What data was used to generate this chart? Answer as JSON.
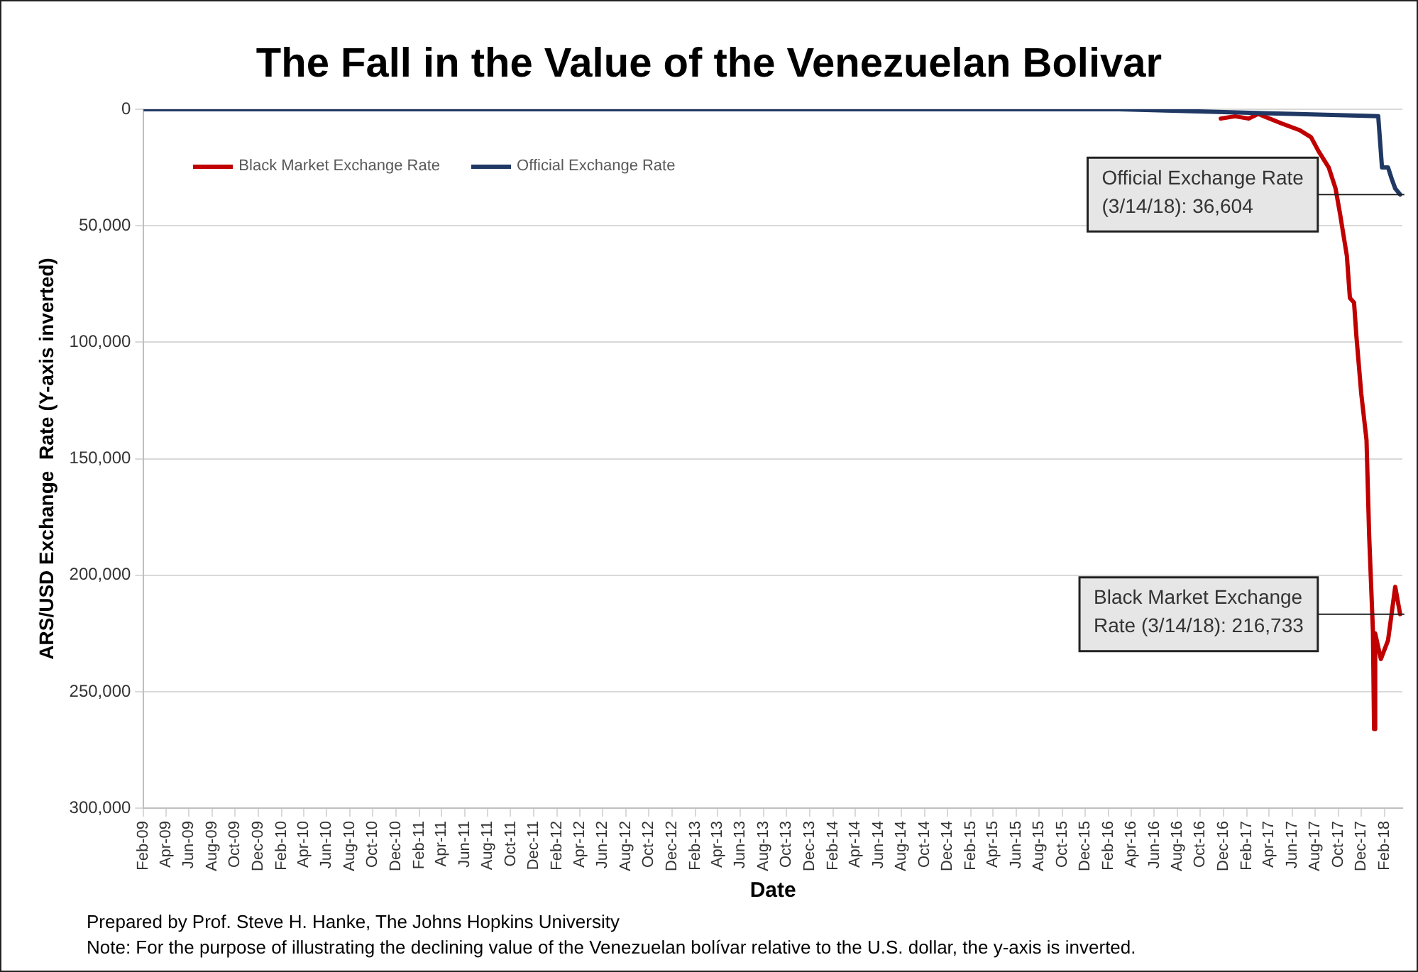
{
  "chart_data": {
    "type": "line",
    "title": "The Fall in the Value of the Venezuelan Bolivar",
    "xlabel": "Date",
    "ylabel": "ARS/USD Exchange  Rate (Y-axis inverted)",
    "series": [
      {
        "name": "Black Market Exchange Rate",
        "color": "#c00000",
        "x": [
          "2016-11-24",
          "2017-01-01",
          "2017-02-06",
          "2017-03-03",
          "2017-05-03",
          "2017-06-21",
          "2017-07-21",
          "2017-08-10",
          "2017-09-06",
          "2017-09-24",
          "2017-10-06",
          "2017-10-24",
          "2017-11-01",
          "2017-11-12",
          "2017-11-18",
          "2017-12-01",
          "2017-12-15",
          "2017-12-22",
          "2018-01-01",
          "2018-01-04",
          "2018-01-07",
          "2018-01-22",
          "2018-02-10",
          "2018-03-01",
          "2018-03-14"
        ],
        "values": [
          4000,
          3000,
          4000,
          2000,
          6000,
          9000,
          12000,
          18000,
          25000,
          34000,
          45000,
          63000,
          81000,
          83000,
          97000,
          122000,
          142000,
          183000,
          224000,
          266000,
          225000,
          236000,
          228000,
          205000,
          216733
        ]
      },
      {
        "name": "Official Exchange Rate",
        "color": "#1f3864",
        "x": [
          "2009-02-01",
          "2016-03-01",
          "2017-06-01",
          "2018-01-15",
          "2018-01-25",
          "2018-02-10",
          "2018-02-20",
          "2018-03-01",
          "2018-03-14"
        ],
        "values": [
          0,
          0,
          2000,
          3000,
          25000,
          25000,
          30000,
          34000,
          36604
        ]
      }
    ],
    "xlim": [
      "2009-02-01",
      "2018-03-20"
    ],
    "xticks": [
      {
        "value": "2009-02",
        "label": "Feb-09"
      },
      {
        "value": "2009-04",
        "label": "Apr-09"
      },
      {
        "value": "2009-06",
        "label": "Jun-09"
      },
      {
        "value": "2009-08",
        "label": "Aug-09"
      },
      {
        "value": "2009-10",
        "label": "Oct-09"
      },
      {
        "value": "2009-12",
        "label": "Dec-09"
      },
      {
        "value": "2010-02",
        "label": "Feb-10"
      },
      {
        "value": "2010-04",
        "label": "Apr-10"
      },
      {
        "value": "2010-06",
        "label": "Jun-10"
      },
      {
        "value": "2010-08",
        "label": "Aug-10"
      },
      {
        "value": "2010-10",
        "label": "Oct-10"
      },
      {
        "value": "2010-12",
        "label": "Dec-10"
      },
      {
        "value": "2011-02",
        "label": "Feb-11"
      },
      {
        "value": "2011-04",
        "label": "Apr-11"
      },
      {
        "value": "2011-06",
        "label": "Jun-11"
      },
      {
        "value": "2011-08",
        "label": "Aug-11"
      },
      {
        "value": "2011-10",
        "label": "Oct-11"
      },
      {
        "value": "2011-12",
        "label": "Dec-11"
      },
      {
        "value": "2012-02",
        "label": "Feb-12"
      },
      {
        "value": "2012-04",
        "label": "Apr-12"
      },
      {
        "value": "2012-06",
        "label": "Jun-12"
      },
      {
        "value": "2012-08",
        "label": "Aug-12"
      },
      {
        "value": "2012-10",
        "label": "Oct-12"
      },
      {
        "value": "2012-12",
        "label": "Dec-12"
      },
      {
        "value": "2013-02",
        "label": "Feb-13"
      },
      {
        "value": "2013-04",
        "label": "Apr-13"
      },
      {
        "value": "2013-06",
        "label": "Jun-13"
      },
      {
        "value": "2013-08",
        "label": "Aug-13"
      },
      {
        "value": "2013-10",
        "label": "Oct-13"
      },
      {
        "value": "2013-12",
        "label": "Dec-13"
      },
      {
        "value": "2014-02",
        "label": "Feb-14"
      },
      {
        "value": "2014-04",
        "label": "Apr-14"
      },
      {
        "value": "2014-06",
        "label": "Jun-14"
      },
      {
        "value": "2014-08",
        "label": "Aug-14"
      },
      {
        "value": "2014-10",
        "label": "Oct-14"
      },
      {
        "value": "2014-12",
        "label": "Dec-14"
      },
      {
        "value": "2015-02",
        "label": "Feb-15"
      },
      {
        "value": "2015-04",
        "label": "Apr-15"
      },
      {
        "value": "2015-06",
        "label": "Jun-15"
      },
      {
        "value": "2015-08",
        "label": "Aug-15"
      },
      {
        "value": "2015-10",
        "label": "Oct-15"
      },
      {
        "value": "2015-12",
        "label": "Dec-15"
      },
      {
        "value": "2016-02",
        "label": "Feb-16"
      },
      {
        "value": "2016-04",
        "label": "Apr-16"
      },
      {
        "value": "2016-06",
        "label": "Jun-16"
      },
      {
        "value": "2016-08",
        "label": "Aug-16"
      },
      {
        "value": "2016-10",
        "label": "Oct-16"
      },
      {
        "value": "2016-12",
        "label": "Dec-16"
      },
      {
        "value": "2017-02",
        "label": "Feb-17"
      },
      {
        "value": "2017-04",
        "label": "Apr-17"
      },
      {
        "value": "2017-06",
        "label": "Jun-17"
      },
      {
        "value": "2017-08",
        "label": "Aug-17"
      },
      {
        "value": "2017-10",
        "label": "Oct-17"
      },
      {
        "value": "2017-12",
        "label": "Dec-17"
      },
      {
        "value": "2018-02",
        "label": "Feb-18"
      }
    ],
    "ylim": [
      300000,
      0
    ],
    "yticks": [
      {
        "value": 0,
        "label": "0"
      },
      {
        "value": 50000,
        "label": "50,000"
      },
      {
        "value": 100000,
        "label": "100,000"
      },
      {
        "value": 150000,
        "label": "150,000"
      },
      {
        "value": 200000,
        "label": "200,000"
      },
      {
        "value": 250000,
        "label": "250,000"
      },
      {
        "value": 300000,
        "label": "300,000"
      }
    ],
    "grid": "y",
    "legend": "top left",
    "marker": "none",
    "line_style": "solid",
    "annotations": [
      {
        "text": "Official Exchange Rate (3/14/18): 36,604",
        "x": "2018-03-14",
        "y": 36604
      },
      {
        "text": "Black Market Exchange Rate (3/14/18): 216,733",
        "x": "2018-03-14",
        "y": 216733
      },
      "Prepared by Prof. Steve H. Hanke, The Johns Hopkins University",
      "Note: For the purpose of illustrating the declining value of the Venezuelan bolívar relative to the U.S. dollar, the y-axis is inverted."
    ]
  }
}
